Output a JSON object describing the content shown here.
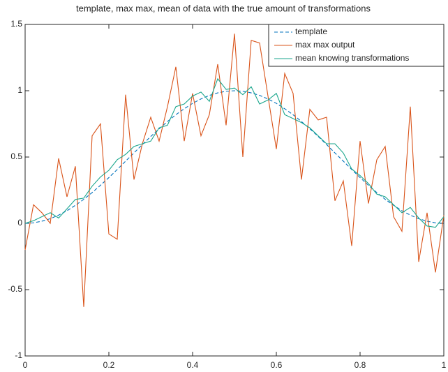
{
  "chart_data": {
    "type": "line",
    "title": "template, max max, mean of data with the true amount of transformations",
    "x": [
      0,
      0.02,
      0.04,
      0.06,
      0.08,
      0.1,
      0.12,
      0.14,
      0.16,
      0.18,
      0.2,
      0.22,
      0.24,
      0.26,
      0.28,
      0.3,
      0.32,
      0.34,
      0.36,
      0.38,
      0.4,
      0.42,
      0.44,
      0.46,
      0.48,
      0.5,
      0.52,
      0.54,
      0.56,
      0.58,
      0.6,
      0.62,
      0.64,
      0.66,
      0.68,
      0.7,
      0.72,
      0.74,
      0.76,
      0.78,
      0.8,
      0.82,
      0.84,
      0.86,
      0.88,
      0.9,
      0.92,
      0.94,
      0.96,
      0.98,
      1
    ],
    "series": [
      {
        "name": "template",
        "color": "#0072bd",
        "dashed": true,
        "values": [
          0,
          0.004,
          0.016,
          0.035,
          0.062,
          0.095,
          0.136,
          0.181,
          0.232,
          0.287,
          0.345,
          0.406,
          0.469,
          0.531,
          0.594,
          0.655,
          0.713,
          0.768,
          0.819,
          0.864,
          0.905,
          0.938,
          0.965,
          0.984,
          0.996,
          1,
          0.996,
          0.984,
          0.965,
          0.938,
          0.905,
          0.864,
          0.819,
          0.768,
          0.713,
          0.655,
          0.594,
          0.531,
          0.469,
          0.406,
          0.345,
          0.287,
          0.232,
          0.181,
          0.136,
          0.095,
          0.062,
          0.035,
          0.016,
          0.004,
          0
        ]
      },
      {
        "name": "max max output",
        "color": "#d95319",
        "dashed": false,
        "values": [
          -0.2,
          0.14,
          0.08,
          0,
          0.49,
          0.2,
          0.43,
          -0.63,
          0.66,
          0.75,
          -0.08,
          -0.12,
          0.97,
          0.33,
          0.6,
          0.8,
          0.62,
          0.88,
          1.18,
          0.62,
          0.98,
          0.66,
          0.82,
          1.2,
          0.74,
          1.43,
          0.5,
          1.38,
          1.36,
          0.96,
          0.56,
          1.13,
          0.98,
          0.33,
          0.86,
          0.78,
          0.8,
          0.17,
          0.32,
          -0.17,
          0.62,
          0.15,
          0.48,
          0.58,
          0.05,
          -0.06,
          0.88,
          -0.29,
          0.08,
          -0.37,
          0.06
        ]
      },
      {
        "name": "mean knowing transformations",
        "color": "#1aa68c",
        "dashed": false,
        "values": [
          0,
          0.02,
          0.05,
          0.08,
          0.04,
          0.11,
          0.18,
          0.19,
          0.28,
          0.35,
          0.4,
          0.48,
          0.52,
          0.58,
          0.6,
          0.62,
          0.72,
          0.74,
          0.88,
          0.9,
          0.96,
          0.99,
          0.92,
          1.09,
          1.01,
          1.02,
          0.97,
          1.03,
          0.9,
          0.93,
          0.98,
          0.82,
          0.79,
          0.76,
          0.72,
          0.66,
          0.6,
          0.6,
          0.53,
          0.41,
          0.36,
          0.3,
          0.22,
          0.2,
          0.14,
          0.08,
          0.12,
          0.04,
          -0.02,
          -0.03,
          0.05
        ]
      }
    ],
    "xlim": [
      0,
      1
    ],
    "ylim": [
      -1,
      1.5
    ],
    "xticks": [
      0,
      0.2,
      0.4,
      0.6,
      0.8,
      1
    ],
    "yticks": [
      -1,
      -0.5,
      0,
      0.5,
      1,
      1.5
    ],
    "legend": "northeast",
    "grid": false
  }
}
